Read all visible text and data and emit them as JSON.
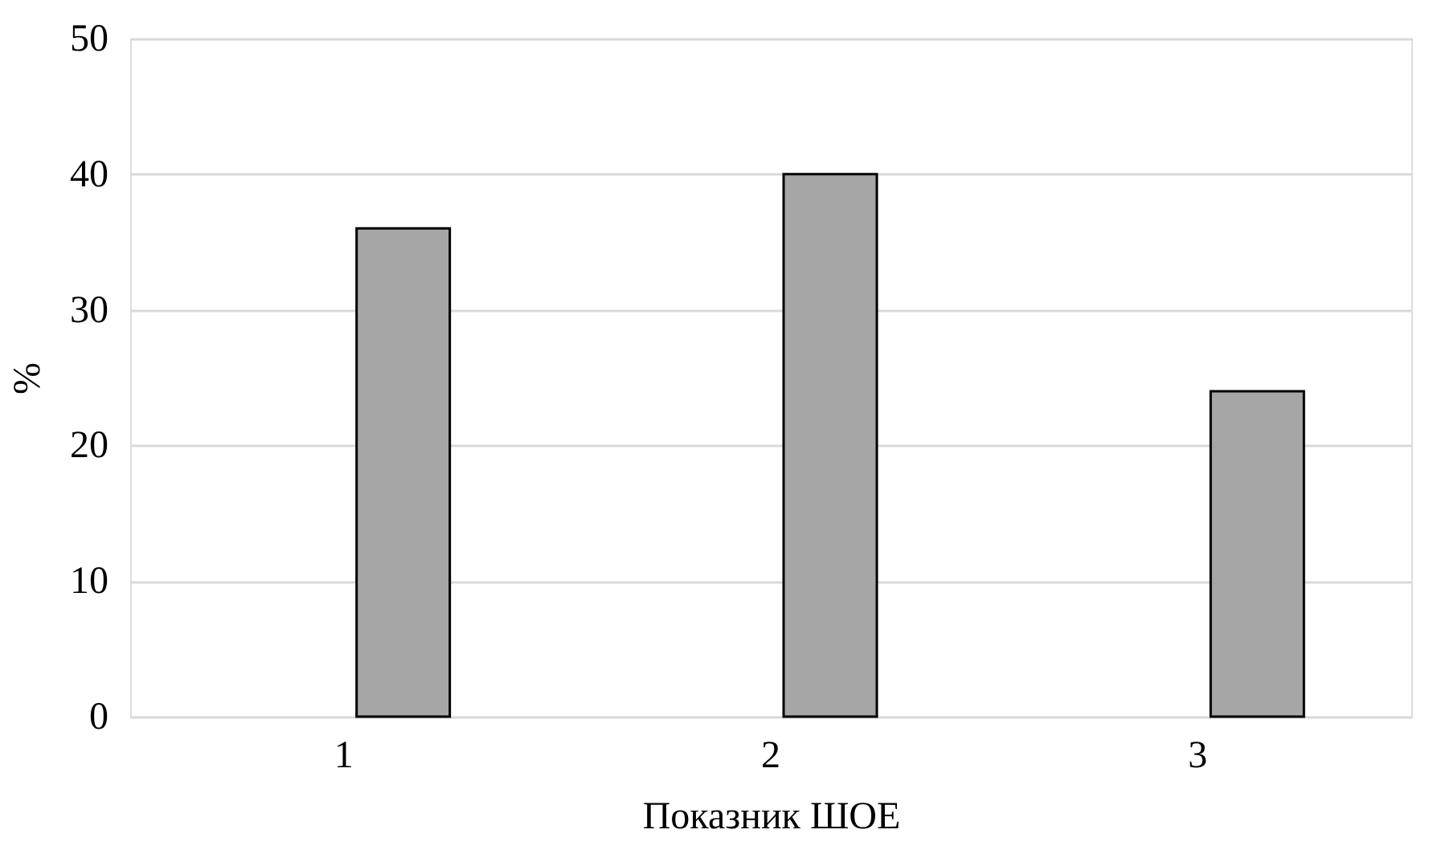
{
  "chart_data": {
    "type": "bar",
    "xlabel": "Показник ШОЕ",
    "ylabel": "%",
    "categories": [
      "1",
      "2",
      "3"
    ],
    "values": [
      36,
      40,
      24
    ],
    "color": "#a6a6a6",
    "ylim": [
      0,
      50
    ],
    "yticks": [
      0,
      10,
      20,
      30,
      40,
      50
    ],
    "grid": "y"
  }
}
